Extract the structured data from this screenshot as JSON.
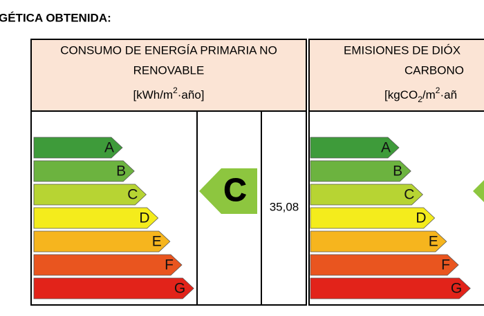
{
  "heading": "GÉTICA OBTENIDA:",
  "tables": [
    {
      "title_lines": [
        "CONSUMO DE ENERGÍA PRIMARIA NO",
        "RENOVABLE"
      ],
      "unit_parts": [
        "[kWh/m",
        "2",
        "·año]"
      ],
      "scale": [
        "A",
        "B",
        "C",
        "D",
        "E",
        "F",
        "G"
      ],
      "rating": "C",
      "value": "35,08"
    },
    {
      "title_lines": [
        "EMISIONES DE DIÓX",
        "CARBONO"
      ],
      "unit_parts": [
        "[kgCO",
        "2",
        "/m",
        "2",
        "·añ"
      ],
      "scale": [
        "A",
        "B",
        "C",
        "D",
        "E",
        "F",
        "G"
      ]
    }
  ]
}
